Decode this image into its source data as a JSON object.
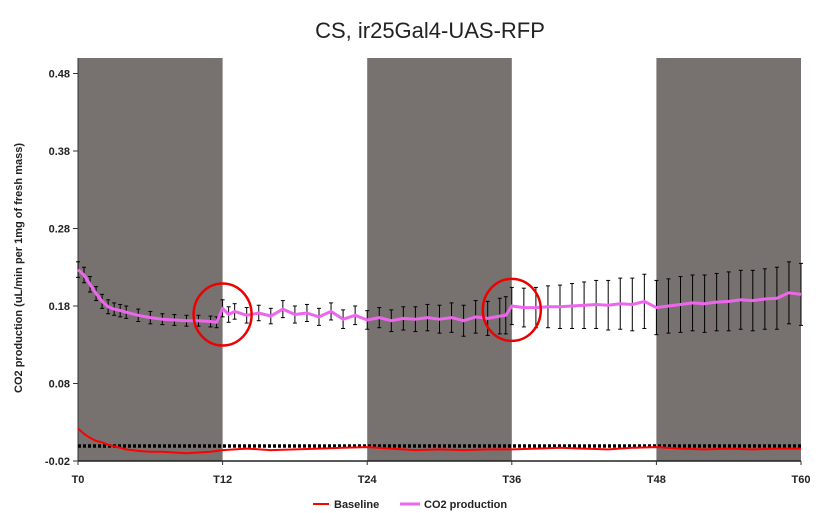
{
  "chart_data": {
    "type": "line",
    "title": "CS, ir25Gal4-UAS-RFP",
    "xlabel": "",
    "ylabel": "CO2 production (uL/min per 1mg of fresh mass)",
    "x_range": [
      0,
      60
    ],
    "ylim": [
      -0.02,
      0.5
    ],
    "x_ticks": [
      "T0",
      "T12",
      "T24",
      "T36",
      "T48",
      "T60"
    ],
    "x_tick_values": [
      0,
      12,
      24,
      36,
      48,
      60
    ],
    "y_ticks": [
      "-0.02",
      "0.08",
      "0.18",
      "0.28",
      "0.38",
      "0.48"
    ],
    "y_tick_values": [
      -0.02,
      0.08,
      0.18,
      0.28,
      0.38,
      0.48
    ],
    "dark_periods": [
      [
        0,
        12
      ],
      [
        24,
        36
      ],
      [
        48,
        60
      ]
    ],
    "legend_position": "bottom",
    "series": [
      {
        "name": "Baseline",
        "color": "#ff0000",
        "x": [
          0,
          0.5,
          1,
          1.5,
          2,
          2.5,
          3,
          3.5,
          4,
          5,
          6,
          7,
          8,
          9,
          10,
          11,
          12,
          14,
          16,
          18,
          20,
          22,
          24,
          26,
          28,
          30,
          32,
          34,
          36,
          38,
          40,
          42,
          44,
          46,
          48,
          50,
          52,
          54,
          56,
          58,
          60
        ],
        "values": [
          0.022,
          0.015,
          0.01,
          0.006,
          0.004,
          0.001,
          -0.001,
          -0.003,
          -0.005,
          -0.007,
          -0.008,
          -0.008,
          -0.009,
          -0.01,
          -0.009,
          -0.008,
          -0.006,
          -0.004,
          -0.006,
          -0.005,
          -0.004,
          -0.003,
          -0.002,
          -0.004,
          -0.006,
          -0.005,
          -0.006,
          -0.005,
          -0.005,
          -0.004,
          -0.003,
          -0.004,
          -0.005,
          -0.003,
          -0.002,
          -0.004,
          -0.005,
          -0.004,
          -0.005,
          -0.004,
          -0.004
        ]
      },
      {
        "name": "CO2 production",
        "color": "#ee66ee",
        "x": [
          0,
          0.5,
          1,
          1.5,
          2,
          2.5,
          3,
          3.5,
          4,
          5,
          6,
          7,
          8,
          9,
          10,
          11,
          11.5,
          12,
          12.5,
          13,
          14,
          15,
          16,
          17,
          18,
          19,
          20,
          21,
          22,
          23,
          24,
          25,
          26,
          27,
          28,
          29,
          30,
          31,
          32,
          33,
          34,
          35,
          35.5,
          36,
          37,
          38,
          39,
          40,
          41,
          42,
          43,
          44,
          45,
          46,
          47,
          48,
          49,
          50,
          51,
          52,
          53,
          54,
          55,
          56,
          57,
          58,
          59,
          60
        ],
        "values": [
          0.227,
          0.22,
          0.208,
          0.196,
          0.186,
          0.179,
          0.176,
          0.174,
          0.172,
          0.168,
          0.165,
          0.163,
          0.162,
          0.161,
          0.161,
          0.16,
          0.159,
          0.177,
          0.169,
          0.173,
          0.168,
          0.171,
          0.167,
          0.176,
          0.169,
          0.171,
          0.166,
          0.173,
          0.163,
          0.168,
          0.162,
          0.165,
          0.161,
          0.164,
          0.163,
          0.165,
          0.163,
          0.165,
          0.161,
          0.166,
          0.164,
          0.167,
          0.168,
          0.18,
          0.178,
          0.178,
          0.179,
          0.179,
          0.18,
          0.181,
          0.182,
          0.181,
          0.183,
          0.182,
          0.186,
          0.178,
          0.18,
          0.182,
          0.184,
          0.183,
          0.185,
          0.186,
          0.188,
          0.187,
          0.189,
          0.19,
          0.197,
          0.195
        ],
        "errors": [
          0.01,
          0.01,
          0.01,
          0.009,
          0.009,
          0.009,
          0.008,
          0.008,
          0.008,
          0.008,
          0.008,
          0.007,
          0.007,
          0.007,
          0.007,
          0.007,
          0.007,
          0.011,
          0.01,
          0.01,
          0.01,
          0.01,
          0.01,
          0.011,
          0.011,
          0.011,
          0.011,
          0.011,
          0.012,
          0.012,
          0.012,
          0.013,
          0.014,
          0.015,
          0.016,
          0.017,
          0.018,
          0.019,
          0.02,
          0.021,
          0.022,
          0.023,
          0.024,
          0.024,
          0.025,
          0.026,
          0.027,
          0.028,
          0.029,
          0.03,
          0.031,
          0.032,
          0.033,
          0.034,
          0.035,
          0.035,
          0.035,
          0.036,
          0.036,
          0.037,
          0.037,
          0.038,
          0.038,
          0.039,
          0.039,
          0.04,
          0.04,
          0.04
        ]
      }
    ],
    "annotations": [
      {
        "type": "circle",
        "color": "#ee0000",
        "x": 12,
        "y": 0.169
      },
      {
        "type": "circle",
        "color": "#ee0000",
        "x": 36,
        "y": 0.175
      }
    ]
  }
}
